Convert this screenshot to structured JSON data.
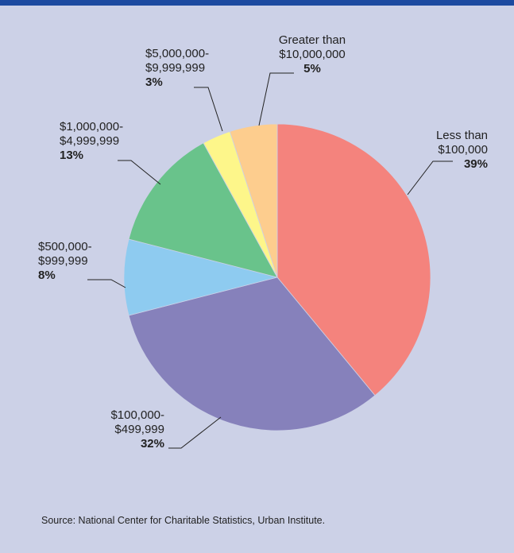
{
  "chart_data": {
    "type": "pie",
    "title": "",
    "slices": [
      {
        "label_lines": [
          "Less than",
          "$100,000"
        ],
        "pct_label": "39%",
        "value": 39,
        "color": "#f4837d"
      },
      {
        "label_lines": [
          "$100,000-",
          "$499,999"
        ],
        "pct_label": "32%",
        "value": 32,
        "color": "#8681bb"
      },
      {
        "label_lines": [
          "$500,000-",
          "$999,999"
        ],
        "pct_label": "8%",
        "value": 8,
        "color": "#8ecbf0"
      },
      {
        "label_lines": [
          "$1,000,000-",
          "$4,999,999"
        ],
        "pct_label": "13%",
        "value": 13,
        "color": "#69c38b"
      },
      {
        "label_lines": [
          "$5,000,000-",
          "$9,999,999"
        ],
        "pct_label": "3%",
        "value": 3,
        "color": "#fdf68a"
      },
      {
        "label_lines": [
          "Greater than",
          "$10,000,000"
        ],
        "pct_label": "5%",
        "value": 5,
        "color": "#fdcd8e"
      }
    ]
  },
  "source": "Source: National Center for Charitable Statistics, Urban Institute.",
  "colors": {
    "background": "#ccd1e7",
    "top_bar": "#1c4aa0"
  }
}
